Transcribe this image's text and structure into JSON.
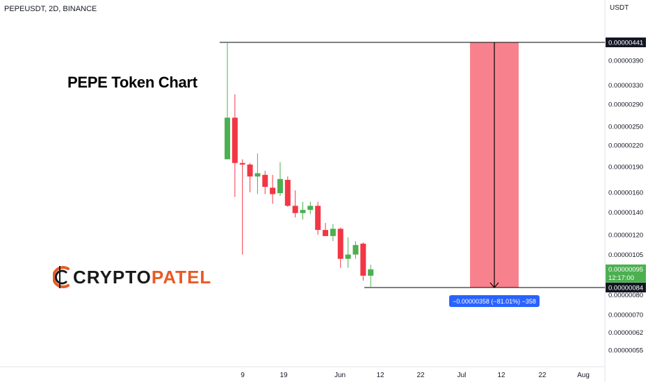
{
  "header": {
    "symbol_line": "PEPEUSDT, 2D, BINANCE",
    "currency": "USDT"
  },
  "title": "PEPE Token Chart",
  "logo": {
    "part1": "CRYPTO",
    "part2": "PATEL"
  },
  "colors": {
    "up": "#4caf50",
    "down": "#f23645",
    "zone": "#f7828e",
    "measure_label_bg": "#2962ff",
    "price_label_bg": "#131722",
    "last_price_bg": "#4caf50",
    "brand_orange": "#e85a24"
  },
  "chart_data": {
    "type": "candlestick",
    "y_axis": {
      "scale": "log",
      "tick_labels": [
        "0.00000390",
        "0.00000330",
        "0.00000290",
        "0.00000250",
        "0.00000220",
        "0.00000190",
        "0.00000160",
        "0.00000140",
        "0.00000120",
        "0.00000105",
        "0.00000080",
        "0.00000070",
        "0.00000062",
        "0.00000055"
      ],
      "price_labels": [
        {
          "text": "0.00000441",
          "style": "dark"
        },
        {
          "text": "0.00000084",
          "style": "dark"
        },
        {
          "text": "0.00000095",
          "countdown": "12:17:00",
          "style": "green"
        }
      ]
    },
    "x_axis": {
      "tick_labels": [
        "9",
        "19",
        "Jun",
        "12",
        "22",
        "Jul",
        "12",
        "22",
        "Aug"
      ]
    },
    "candles": [
      {
        "o": 2.0,
        "h": 4.41,
        "l": 2.0,
        "c": 2.65
      },
      {
        "o": 2.65,
        "h": 3.1,
        "l": 1.55,
        "c": 1.95
      },
      {
        "o": 1.95,
        "h": 2.0,
        "l": 1.05,
        "c": 1.93
      },
      {
        "o": 1.93,
        "h": 1.95,
        "l": 1.6,
        "c": 1.78
      },
      {
        "o": 1.78,
        "h": 2.08,
        "l": 1.58,
        "c": 1.82
      },
      {
        "o": 1.8,
        "h": 1.85,
        "l": 1.58,
        "c": 1.66
      },
      {
        "o": 1.65,
        "h": 1.8,
        "l": 1.48,
        "c": 1.58
      },
      {
        "o": 1.59,
        "h": 1.96,
        "l": 1.56,
        "c": 1.75
      },
      {
        "o": 1.74,
        "h": 1.78,
        "l": 1.45,
        "c": 1.46
      },
      {
        "o": 1.46,
        "h": 1.62,
        "l": 1.35,
        "c": 1.39
      },
      {
        "o": 1.39,
        "h": 1.5,
        "l": 1.33,
        "c": 1.42
      },
      {
        "o": 1.42,
        "h": 1.5,
        "l": 1.38,
        "c": 1.46
      },
      {
        "o": 1.46,
        "h": 1.5,
        "l": 1.2,
        "c": 1.24
      },
      {
        "o": 1.24,
        "h": 1.3,
        "l": 1.19,
        "c": 1.19
      },
      {
        "o": 1.19,
        "h": 1.29,
        "l": 1.15,
        "c": 1.25
      },
      {
        "o": 1.25,
        "h": 1.26,
        "l": 0.96,
        "c": 1.02
      },
      {
        "o": 1.02,
        "h": 1.18,
        "l": 0.96,
        "c": 1.05
      },
      {
        "o": 1.05,
        "h": 1.15,
        "l": 1.02,
        "c": 1.12
      },
      {
        "o": 1.13,
        "h": 1.14,
        "l": 0.88,
        "c": 0.91
      },
      {
        "o": 0.91,
        "h": 0.98,
        "l": 0.84,
        "c": 0.95
      }
    ],
    "levels": [
      {
        "price": 4.41,
        "label": "0.00000441"
      },
      {
        "price": 0.84,
        "label": "0.00000084"
      }
    ],
    "measure": {
      "from": 4.41,
      "to": 0.84,
      "label": "−0.00000358 (−81.01%) −358"
    }
  }
}
